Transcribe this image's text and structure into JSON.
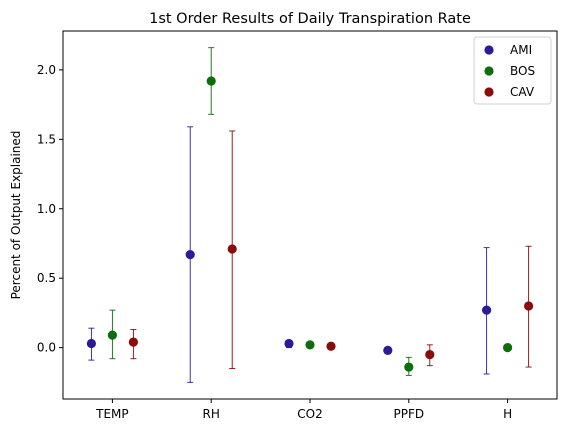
{
  "chart_data": {
    "type": "scatter",
    "title": "1st Order Results of Daily Transpiration Rate",
    "xlabel": "",
    "ylabel": "Percent of Output Explained",
    "categories": [
      "TEMP",
      "RH",
      "CO2",
      "PPFD",
      "H"
    ],
    "ylim": [
      -0.37,
      2.28
    ],
    "yticks": [
      0.0,
      0.5,
      1.0,
      1.5,
      2.0
    ],
    "ytick_labels": [
      "0.0",
      "0.5",
      "1.0",
      "1.5",
      "2.0"
    ],
    "grid": false,
    "legend_position": "top-right",
    "series": [
      {
        "name": "AMI",
        "color": "#2b1b98",
        "values": [
          0.03,
          0.67,
          0.03,
          -0.02,
          0.27
        ],
        "err_low": [
          -0.09,
          -0.25,
          0.0,
          -0.02,
          -0.19
        ],
        "err_high": [
          0.14,
          1.59,
          0.05,
          -0.02,
          0.72
        ]
      },
      {
        "name": "BOS",
        "color": "#0b6e0b",
        "values": [
          0.09,
          1.92,
          0.02,
          -0.14,
          0.0
        ],
        "err_low": [
          -0.08,
          1.68,
          0.02,
          -0.2,
          0.0
        ],
        "err_high": [
          0.27,
          2.16,
          0.02,
          -0.07,
          0.0
        ]
      },
      {
        "name": "CAV",
        "color": "#8b0a0a",
        "values": [
          0.04,
          0.71,
          0.01,
          -0.05,
          0.3
        ],
        "err_low": [
          -0.08,
          -0.15,
          0.01,
          -0.13,
          -0.14
        ],
        "err_high": [
          0.13,
          1.56,
          0.01,
          0.02,
          0.73
        ]
      }
    ]
  }
}
